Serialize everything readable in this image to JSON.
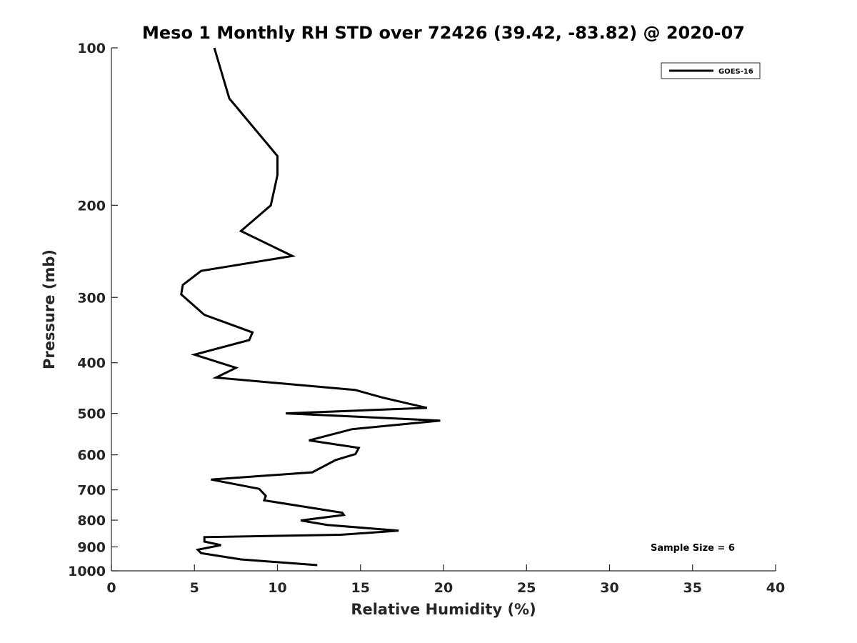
{
  "chart_data": {
    "type": "line",
    "title": "Meso 1 Monthly RH STD over 72426 (39.42, -83.82) @ 2020-07",
    "xlabel": "Relative Humidity (%)",
    "ylabel": "Pressure (mb)",
    "xlim": [
      0,
      40
    ],
    "ylim": [
      100,
      1000
    ],
    "y_scale": "log",
    "y_reversed": true,
    "x_ticks": [
      0,
      5,
      10,
      15,
      20,
      25,
      30,
      35,
      40
    ],
    "y_ticks": [
      100,
      200,
      300,
      400,
      500,
      600,
      700,
      800,
      900,
      1000
    ],
    "x_tick_labels": [
      "0",
      "5",
      "10",
      "15",
      "20",
      "25",
      "30",
      "35",
      "40"
    ],
    "y_tick_labels": [
      "100",
      "200",
      "300",
      "400",
      "500",
      "600",
      "700",
      "800",
      "900",
      "1000"
    ],
    "grid": false,
    "legend_position": "top-right",
    "line_color": "#000000",
    "series": [
      {
        "name": "GOES-16",
        "x": [
          6.2,
          7.1,
          10.0,
          10.0,
          9.9,
          9.6,
          7.8,
          10.9,
          5.4,
          4.3,
          4.2,
          5.6,
          8.5,
          8.3,
          5.0,
          7.5,
          6.3,
          14.7,
          16.3,
          19.0,
          10.5,
          19.8,
          14.5,
          11.9,
          14.9,
          14.7,
          13.5,
          12.1,
          6.0,
          8.9,
          9.3,
          9.2,
          13.9,
          14.0,
          11.4,
          13.0,
          17.3,
          13.8,
          5.6,
          5.6,
          6.6,
          5.2,
          5.4,
          7.8,
          12.4
        ],
        "y": [
          100,
          125,
          161,
          175,
          181,
          200,
          224,
          250,
          267,
          284,
          296,
          324,
          350,
          362,
          386,
          409,
          427,
          451,
          466,
          488,
          500,
          516,
          536,
          563,
          582,
          598,
          614,
          648,
          669,
          697,
          719,
          733,
          774,
          782,
          801,
          817,
          838,
          853,
          862,
          879,
          893,
          911,
          925,
          951,
          975
        ]
      }
    ],
    "annotations": [
      "Sample Size = 6"
    ]
  }
}
